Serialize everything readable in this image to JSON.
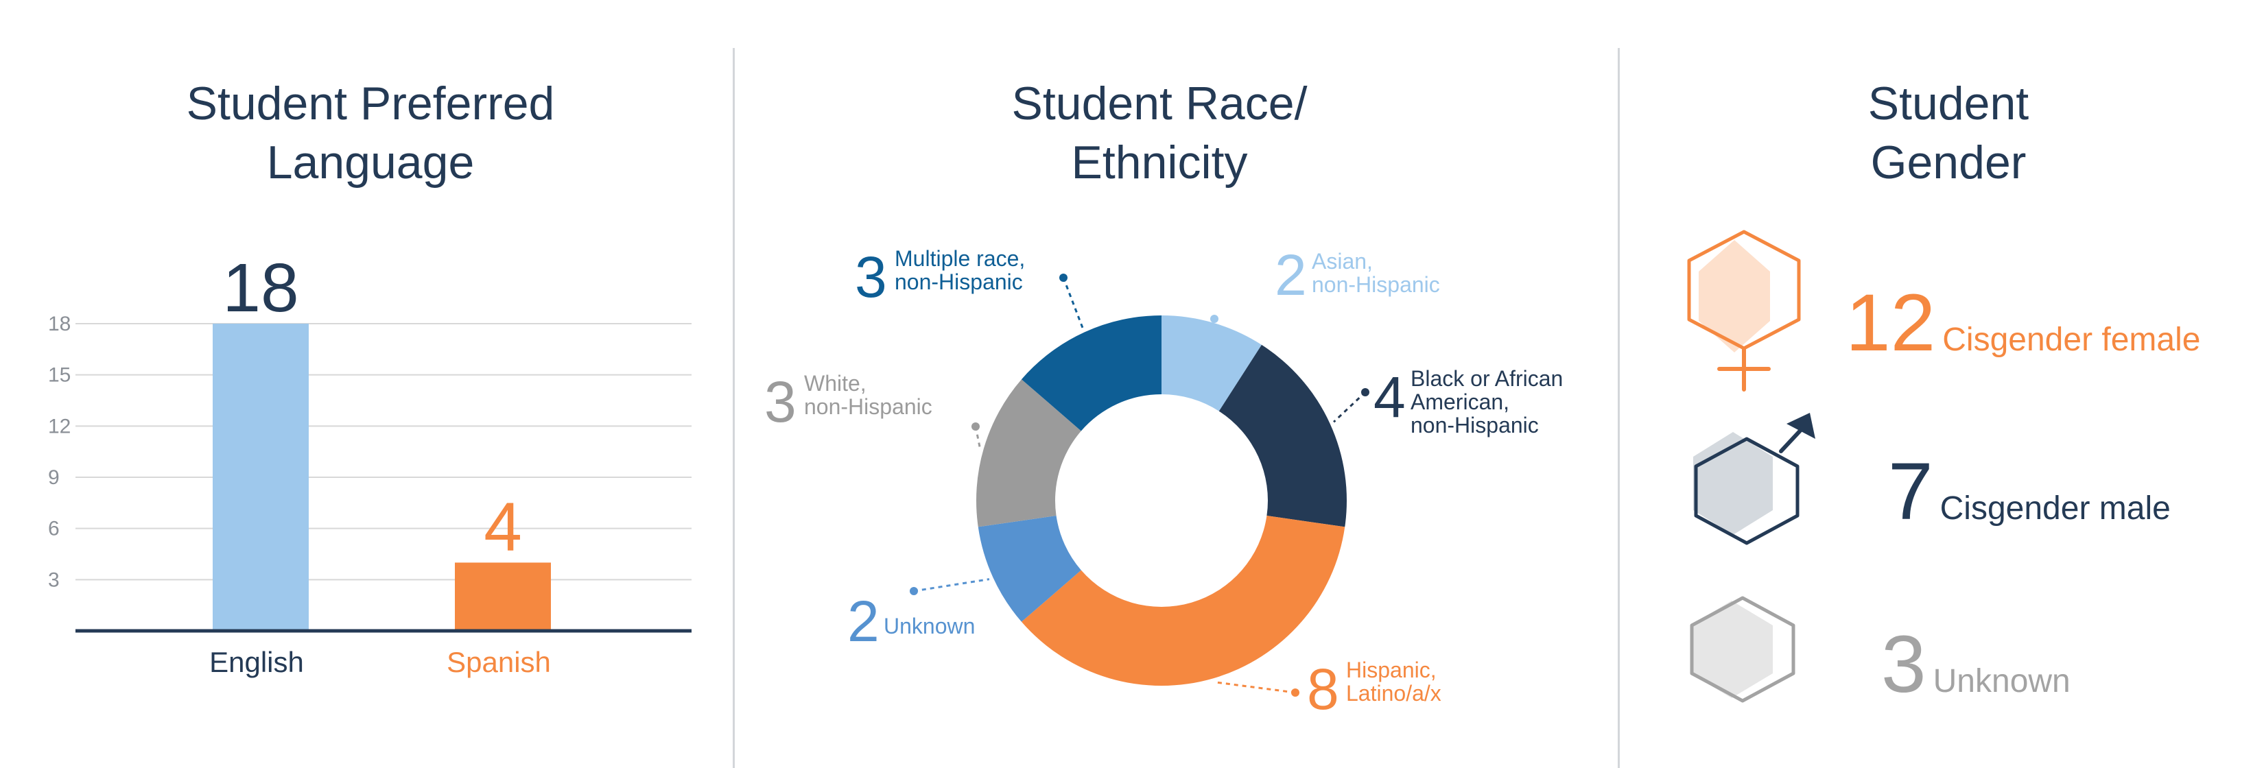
{
  "colors": {
    "navy": "#243a55",
    "light_blue": "#9ec8ec",
    "orange": "#f58840",
    "deep_blue": "#0e5e95",
    "mid_blue": "#5692d0",
    "gray": "#9b9b9b",
    "light_gray": "#c6c6c6",
    "gender_female": "#f58840",
    "gender_male": "#243a55",
    "gender_unknown": "#a3a3a3"
  },
  "panels": {
    "language": {
      "title_line1": "Student Preferred",
      "title_line2": "Language"
    },
    "race": {
      "title_line1": "Student Race/",
      "title_line2": "Ethnicity"
    },
    "gender": {
      "title_line1": "Student",
      "title_line2": "Gender"
    }
  },
  "chart_data": [
    {
      "type": "bar",
      "title": "Student Preferred Language",
      "categories": [
        "English",
        "Spanish"
      ],
      "values": [
        18,
        4
      ],
      "colors": [
        "#9ec8ec",
        "#f58840"
      ],
      "label_colors": [
        "#243a55",
        "#f58840"
      ],
      "yticks": [
        "3",
        "6",
        "9",
        "12",
        "15",
        "18"
      ],
      "ylim": [
        0,
        18
      ],
      "grid": true
    },
    {
      "type": "pie",
      "donut": true,
      "title": "Student Race/ Ethnicity",
      "slices": [
        {
          "count": "2",
          "label_lines": [
            "Asian,",
            "non-Hispanic"
          ],
          "value": 2,
          "color": "#9ec8ec",
          "text_color": "#9ec8ec"
        },
        {
          "count": "4",
          "label_lines": [
            "Black or African",
            "American,",
            "non-Hispanic"
          ],
          "value": 4,
          "color": "#243a55",
          "text_color": "#243a55"
        },
        {
          "count": "8",
          "label_lines": [
            "Hispanic,",
            "Latino/a/x"
          ],
          "value": 8,
          "color": "#f58840",
          "text_color": "#f58840"
        },
        {
          "count": "2",
          "label_lines": [
            "Unknown"
          ],
          "value": 2,
          "color": "#5692d0",
          "text_color": "#5692d0"
        },
        {
          "count": "3",
          "label_lines": [
            "White,",
            "non-Hispanic"
          ],
          "value": 3,
          "color": "#9b9b9b",
          "text_color": "#9b9b9b"
        },
        {
          "count": "3",
          "label_lines": [
            "Multiple race,",
            "non-Hispanic"
          ],
          "value": 3,
          "color": "#0e5e95",
          "text_color": "#0e5e95"
        }
      ]
    },
    {
      "type": "table",
      "title": "Student Gender",
      "rows": [
        {
          "icon": "female-symbol-icon",
          "count": "12",
          "label": "Cisgender female",
          "value": 12,
          "color": "#f58840"
        },
        {
          "icon": "male-symbol-icon",
          "count": "7",
          "label": "Cisgender male",
          "value": 7,
          "color": "#243a55"
        },
        {
          "icon": "unknown-gender-icon",
          "count": "3",
          "label": "Unknown",
          "value": 3,
          "color": "#a3a3a3"
        }
      ]
    }
  ]
}
